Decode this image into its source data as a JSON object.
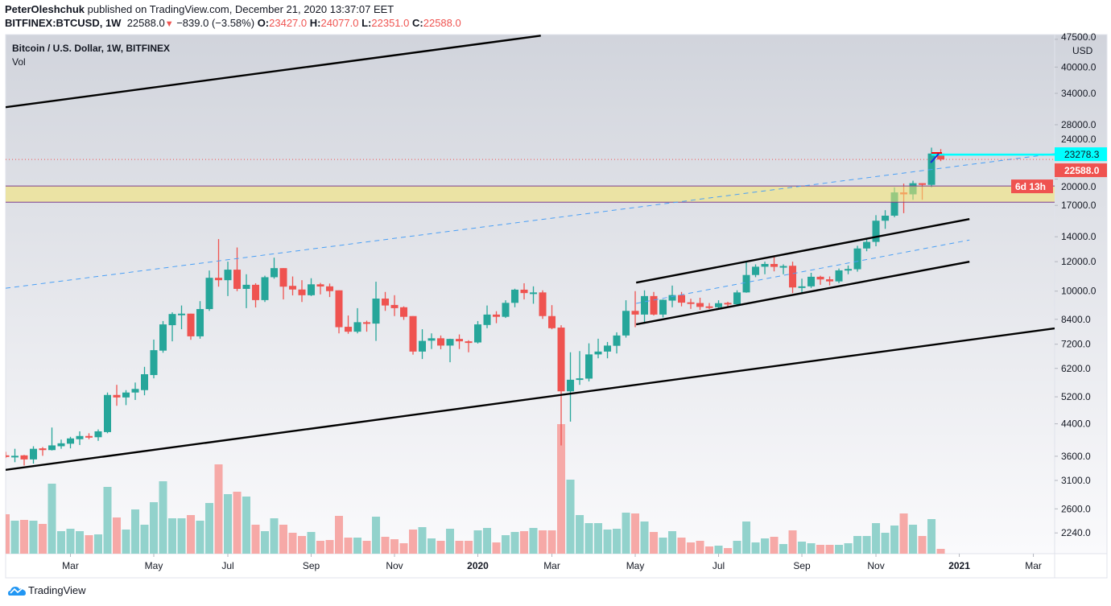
{
  "header": {
    "author": "PeterOleshchuk",
    "published_text": "published on TradingView.com, December 21, 2020 13:37:07 EET",
    "symbol": "BITFINEX:BTCUSD, 1W",
    "last": "22588.0",
    "change": "−839.0 (−3.58%)",
    "o_label": "O:",
    "o": "23427.0",
    "h_label": "H:",
    "h": "24077.0",
    "l_label": "L:",
    "l": "22351.0",
    "c_label": "C:",
    "c": "22588.0"
  },
  "legend": {
    "title": "Bitcoin / U.S. Dollar, 1W, BITFINEX",
    "indicator": "Vol"
  },
  "footer": {
    "brand": "TradingView"
  },
  "colors": {
    "up": "#26a69a",
    "down": "#ef5350",
    "vol_up": "#92d2cc",
    "vol_down": "#f6a9a7",
    "cyan": "#00ffff",
    "zone": "#ece4a6"
  },
  "chart_data": {
    "type": "candlestick",
    "title": "Bitcoin / U.S. Dollar, 1W, BITFINEX",
    "yscale": "log",
    "ylim": [
      1970,
      48900
    ],
    "xlim": [
      0,
      113.3
    ],
    "currency": "USD",
    "y_ticks": [
      47500,
      40000,
      34000,
      28000,
      24000,
      20000,
      17000,
      14000,
      12000,
      10000,
      8400,
      7200,
      6200,
      5200,
      4400,
      3600,
      3100,
      2600,
      2240
    ],
    "y_tick_labels": [
      "47500.0",
      "40000.0",
      "34000.0",
      "28000.0",
      "24000.0",
      "20000.0",
      "17000.0",
      "14000.0",
      "12000.0",
      "10000.0",
      "8400.0",
      "7200.0",
      "6200.0",
      "5200.0",
      "4400.0",
      "3600.0",
      "3100.0",
      "2600.0",
      "2240.0"
    ],
    "x_ticks": [
      {
        "label": "Mar",
        "index": 7
      },
      {
        "label": "May",
        "index": 16
      },
      {
        "label": "Jul",
        "index": 24
      },
      {
        "label": "Sep",
        "index": 33
      },
      {
        "label": "Nov",
        "index": 42
      },
      {
        "label": "2020",
        "index": 51,
        "year": true
      },
      {
        "label": "Mar",
        "index": 59
      },
      {
        "label": "May",
        "index": 68
      },
      {
        "label": "Jul",
        "index": 77
      },
      {
        "label": "Sep",
        "index": 86
      },
      {
        "label": "Nov",
        "index": 94
      },
      {
        "label": "2021",
        "index": 103,
        "year": true
      },
      {
        "label": "Mar",
        "index": 111
      }
    ],
    "ohlc_columns": [
      "open",
      "high",
      "low",
      "close"
    ],
    "candles": [
      [
        3620,
        3700,
        3560,
        3590
      ],
      [
        3590,
        3770,
        3470,
        3610
      ],
      [
        3620,
        3630,
        3400,
        3530
      ],
      [
        3530,
        3830,
        3440,
        3770
      ],
      [
        3780,
        3810,
        3610,
        3740
      ],
      [
        3740,
        4300,
        3730,
        3850
      ],
      [
        3830,
        3990,
        3770,
        3900
      ],
      [
        3890,
        4060,
        3780,
        4020
      ],
      [
        4000,
        4200,
        3860,
        4080
      ],
      [
        4080,
        4150,
        4000,
        4050
      ],
      [
        4050,
        4250,
        3960,
        4200
      ],
      [
        4180,
        5340,
        4150,
        5260
      ],
      [
        5260,
        5600,
        4920,
        5180
      ],
      [
        5180,
        5420,
        4940,
        5340
      ],
      [
        5340,
        5680,
        5100,
        5460
      ],
      [
        5420,
        6260,
        5250,
        5980
      ],
      [
        5950,
        7410,
        5830,
        6940
      ],
      [
        6920,
        8310,
        6830,
        8140
      ],
      [
        8100,
        8770,
        7330,
        8680
      ],
      [
        8680,
        9150,
        7900,
        8700
      ],
      [
        8700,
        8700,
        7400,
        7560
      ],
      [
        7560,
        9400,
        7450,
        8950
      ],
      [
        8950,
        11360,
        8850,
        10860
      ],
      [
        10860,
        13800,
        10280,
        10700
      ],
      [
        10700,
        12000,
        9700,
        11420
      ],
      [
        11420,
        13100,
        10000,
        10140
      ],
      [
        10140,
        11100,
        9000,
        10400
      ],
      [
        10400,
        10500,
        9040,
        9460
      ],
      [
        9460,
        11000,
        9350,
        10900
      ],
      [
        10900,
        12300,
        10800,
        11530
      ],
      [
        11530,
        11530,
        9500,
        10280
      ],
      [
        10330,
        10950,
        9740,
        10100
      ],
      [
        10100,
        10700,
        9350,
        9750
      ],
      [
        9750,
        10830,
        9700,
        10430
      ],
      [
        10430,
        10520,
        9800,
        10290
      ],
      [
        10300,
        10480,
        9640,
        10000
      ],
      [
        10050,
        10050,
        7700,
        8000
      ],
      [
        8020,
        8600,
        7680,
        7780
      ],
      [
        7780,
        9000,
        7700,
        8250
      ],
      [
        8250,
        8330,
        7780,
        8200
      ],
      [
        8180,
        10600,
        7350,
        9550
      ],
      [
        9550,
        9950,
        8850,
        9150
      ],
      [
        9180,
        9750,
        8570,
        9000
      ],
      [
        9050,
        9100,
        8370,
        8530
      ],
      [
        8570,
        8570,
        6750,
        6880
      ],
      [
        6880,
        7900,
        6570,
        7350
      ],
      [
        7360,
        7700,
        6990,
        7470
      ],
      [
        7470,
        7600,
        6980,
        7140
      ],
      [
        7140,
        7450,
        6440,
        7440
      ],
      [
        7440,
        7650,
        6990,
        7330
      ],
      [
        7330,
        7380,
        6850,
        7280
      ],
      [
        7280,
        8310,
        7230,
        8140
      ],
      [
        8110,
        9150,
        7950,
        8650
      ],
      [
        8650,
        8830,
        8200,
        8530
      ],
      [
        8530,
        9450,
        8470,
        9300
      ],
      [
        9300,
        10150,
        9050,
        10090
      ],
      [
        10090,
        10500,
        9500,
        9880
      ],
      [
        9880,
        10300,
        9250,
        9920
      ],
      [
        9920,
        10050,
        8420,
        8570
      ],
      [
        8570,
        9170,
        7900,
        7950
      ],
      [
        7980,
        8100,
        3850,
        5380
      ],
      [
        5380,
        6850,
        4460,
        5780
      ],
      [
        5780,
        6900,
        5600,
        5830
      ],
      [
        5820,
        7240,
        5720,
        6760
      ],
      [
        6760,
        7450,
        6600,
        6880
      ],
      [
        6880,
        7300,
        6600,
        7140
      ],
      [
        7130,
        7750,
        6800,
        7600
      ],
      [
        7600,
        9450,
        7500,
        8850
      ],
      [
        8850,
        10000,
        8000,
        8650
      ],
      [
        8650,
        10050,
        8250,
        9700
      ],
      [
        9700,
        9950,
        8600,
        8650
      ],
      [
        8650,
        9500,
        8500,
        9480
      ],
      [
        9430,
        10350,
        9050,
        9760
      ],
      [
        9760,
        9950,
        9100,
        9310
      ],
      [
        9330,
        9540,
        8960,
        9280
      ],
      [
        9290,
        9600,
        8900,
        9070
      ],
      [
        9100,
        9290,
        8950,
        9030
      ],
      [
        9050,
        9450,
        8950,
        9280
      ],
      [
        9300,
        9360,
        9050,
        9220
      ],
      [
        9220,
        10050,
        9150,
        9920
      ],
      [
        9920,
        12050,
        9900,
        11050
      ],
      [
        11050,
        11800,
        10900,
        11630
      ],
      [
        11630,
        12000,
        11100,
        11830
      ],
      [
        11830,
        12450,
        11300,
        11620
      ],
      [
        11620,
        11800,
        11100,
        11680
      ],
      [
        11700,
        12000,
        9880,
        10230
      ],
      [
        10250,
        10800,
        9900,
        10300
      ],
      [
        10300,
        11200,
        10200,
        10930
      ],
      [
        10930,
        11000,
        10400,
        10750
      ],
      [
        10760,
        10950,
        10360,
        10620
      ],
      [
        10620,
        11500,
        10500,
        11370
      ],
      [
        11370,
        11720,
        11100,
        11470
      ],
      [
        11450,
        13240,
        11280,
        13020
      ],
      [
        13020,
        13800,
        12800,
        13560
      ],
      [
        13560,
        16000,
        13200,
        15460
      ],
      [
        15460,
        16500,
        14700,
        15950
      ],
      [
        15950,
        19000,
        15800,
        18420
      ],
      [
        18420,
        19450,
        16200,
        18200
      ],
      [
        18200,
        19800,
        17600,
        19500
      ],
      [
        19500,
        19500,
        17600,
        19300
      ],
      [
        19300,
        24300,
        19000,
        23427
      ],
      [
        23427,
        24077,
        22351,
        22588
      ]
    ],
    "volume_relative": [
      49,
      41,
      42,
      41,
      37,
      87,
      28,
      31,
      28,
      23,
      24,
      83,
      45,
      30,
      55,
      36,
      64,
      90,
      44,
      44,
      48,
      41,
      63,
      111,
      74,
      77,
      71,
      36,
      28,
      44,
      36,
      26,
      22,
      27,
      16,
      17,
      47,
      20,
      20,
      16,
      46,
      21,
      18,
      13,
      30,
      33,
      19,
      16,
      31,
      16,
      16,
      29,
      32,
      14,
      23,
      27,
      28,
      32,
      29,
      29,
      161,
      92,
      48,
      38,
      38,
      30,
      31,
      51,
      50,
      40,
      27,
      20,
      28,
      20,
      14,
      16,
      9,
      10,
      7,
      16,
      40,
      14,
      19,
      21,
      12,
      29,
      15,
      13,
      11,
      11,
      11,
      13,
      22,
      22,
      38,
      26,
      35,
      50,
      36,
      22,
      43,
      6
    ],
    "drawings": {
      "upper_trendline": {
        "from": [
          0,
          31200
        ],
        "to": [
          57.8,
          48570
        ]
      },
      "lower_trendline": {
        "from": [
          0,
          3310
        ],
        "to": [
          113.3,
          7940
        ]
      },
      "dashed_trendline": {
        "from": [
          0,
          10180
        ],
        "to": [
          118.5,
          24320
        ]
      },
      "channel_upper": {
        "from": [
          68.1,
          10540
        ],
        "to": [
          104.1,
          15620
        ]
      },
      "channel_lower": {
        "from": [
          68.1,
          8140
        ],
        "to": [
          104.1,
          12000
        ]
      },
      "channel_mid_dashed": {
        "from": [
          68.1,
          9270
        ],
        "to": [
          104.1,
          13720
        ]
      },
      "resistance_zone": [
        17340,
        19160
      ],
      "horizontal_level": {
        "price": 23278.3,
        "from_index": 100
      }
    },
    "price_labels": {
      "level": "23278.3",
      "last": "22588.0",
      "last_value": 22588,
      "countdown": "6d 13h"
    }
  }
}
